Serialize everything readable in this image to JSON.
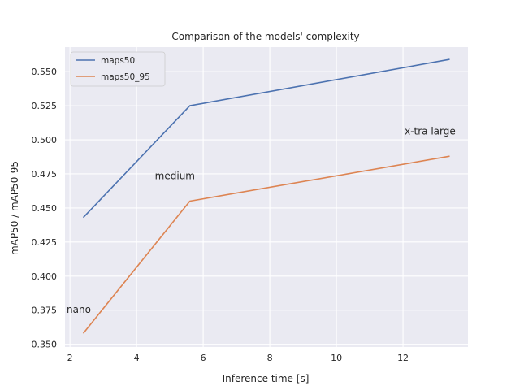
{
  "chart_data": {
    "type": "line",
    "title": "Comparison of the models' complexity",
    "xlabel": "Inference time [s]",
    "ylabel": "mAP50 / mAP50-95",
    "xlim": [
      1.85,
      13.95
    ],
    "ylim": [
      0.348,
      0.568
    ],
    "x_ticks": [
      2,
      4,
      6,
      8,
      10,
      12
    ],
    "y_ticks": [
      0.35,
      0.375,
      0.4,
      0.425,
      0.45,
      0.475,
      0.5,
      0.525,
      0.55
    ],
    "x_tick_labels": [
      "2",
      "4",
      "6",
      "8",
      "10",
      "12"
    ],
    "y_tick_labels": [
      "0.350",
      "0.375",
      "0.400",
      "0.425",
      "0.450",
      "0.475",
      "0.500",
      "0.525",
      "0.550"
    ],
    "grid": true,
    "legend_position": "top-left",
    "series": [
      {
        "name": "maps50",
        "color": "#4c72b0",
        "x": [
          2.4,
          5.6,
          13.4
        ],
        "y": [
          0.443,
          0.525,
          0.559
        ]
      },
      {
        "name": "maps50_95",
        "color": "#dd8452",
        "x": [
          2.4,
          5.6,
          13.4
        ],
        "y": [
          0.358,
          0.455,
          0.488
        ]
      }
    ],
    "annotations": [
      {
        "text": "nano",
        "x": 1.9,
        "y": 0.373
      },
      {
        "text": "medium",
        "x": 4.55,
        "y": 0.471
      },
      {
        "text": "x-tra large",
        "x": 12.05,
        "y": 0.504
      }
    ]
  }
}
